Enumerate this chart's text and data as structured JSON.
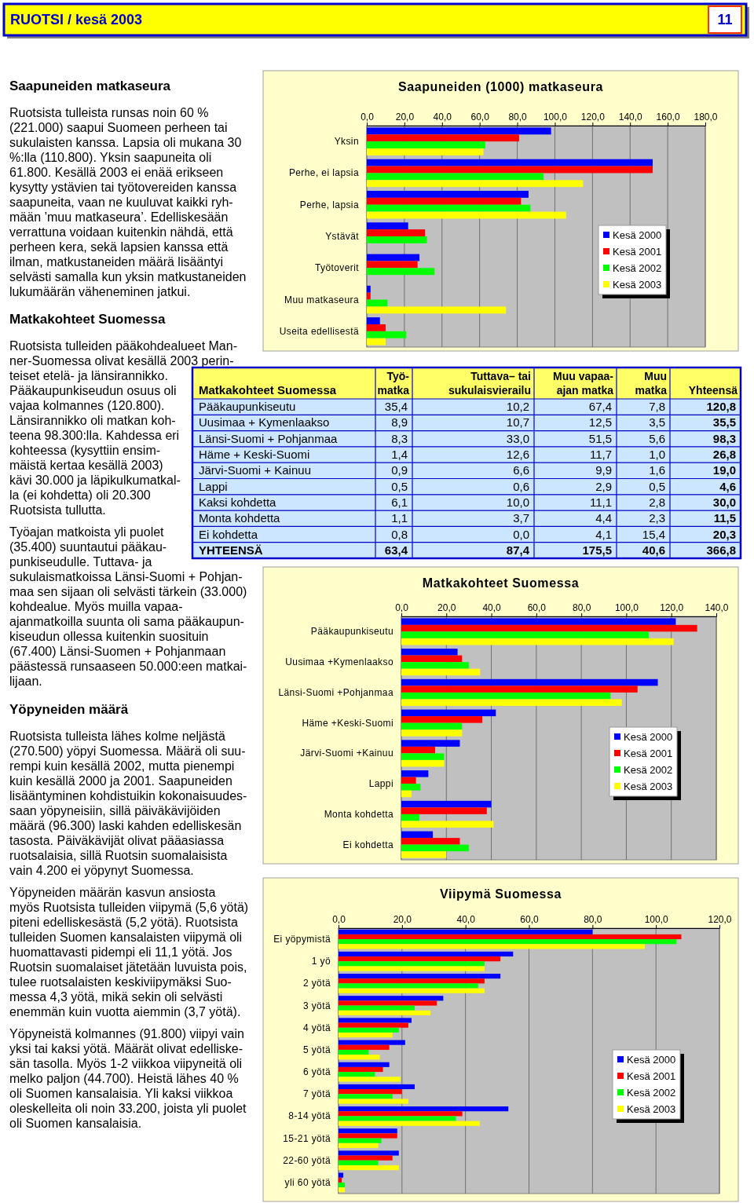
{
  "chart_data": [
    {
      "type": "other",
      "title": "RUOTSI / kesä 2003",
      "annotations": [
        "11"
      ]
    },
    {
      "type": "other",
      "title": "Saapuneiden matkaseura",
      "annotations": [
        "Ruotsista tulleista runsas noin 60 %\n(221.000) saapui Suomeen perheen tai\nsukulaisten kanssa. Lapsia oli mukana 30\n%:lla (110.800). Yksin saapuneita oli\n61.800. Kesällä 2003 ei enää erikseen\nkysytty ystävien tai työtovereiden kanssa\nsaapuneita, vaan ne kuuluvat kaikki ryh-\nmään ’muu matkaseura’. Edelliskesään\nverrattuna voidaan kuitenkin nähdä, että\nperheen kera, sekä lapsien kanssa että\nilman, matkustaneiden määrä lisääntyi\nselvästi samalla kun yksin matkustaneiden\nlukumäärän väheneminen jatkui."
      ]
    },
    {
      "type": "bar",
      "orientation": "horizontal",
      "title": "Saapuneiden (1000) matkaseura",
      "categories": [
        "Yksin",
        "Perhe, ei lapsia",
        "Perhe, lapsia",
        "Ystävät",
        "Työtoverit",
        "Muu matkaseura",
        "Useita edellisestä"
      ],
      "series": [
        {
          "name": "Kesä 2000",
          "color": "#0000ff",
          "values": [
            98,
            152,
            86,
            22,
            28,
            2,
            7
          ]
        },
        {
          "name": "Kesä 2001",
          "color": "#ff0000",
          "values": [
            81,
            152,
            82,
            31,
            27,
            2,
            10
          ]
        },
        {
          "name": "Kesä 2002",
          "color": "#00ff00",
          "values": [
            63,
            94,
            87,
            32,
            36,
            11,
            21
          ]
        },
        {
          "name": "Kesä 2003",
          "color": "#ffff00",
          "values": [
            62,
            115,
            106,
            null,
            null,
            74,
            10
          ]
        }
      ],
      "xlim": [
        0,
        180
      ],
      "xticks": [
        {
          "value": 0,
          "label": "0,0"
        },
        {
          "value": 20,
          "label": "20,0"
        },
        {
          "value": 40,
          "label": "40,0"
        },
        {
          "value": 60,
          "label": "60,0"
        },
        {
          "value": 80,
          "label": "80,0"
        },
        {
          "value": 100,
          "label": "100,0"
        },
        {
          "value": 120,
          "label": "120,0"
        },
        {
          "value": 140,
          "label": "140,0"
        },
        {
          "value": 160,
          "label": "160,0"
        },
        {
          "value": 180,
          "label": "180,0"
        }
      ],
      "grid": "x",
      "legend": "right"
    },
    {
      "type": "other",
      "title": "Matkakohteet Suomessa",
      "annotations": [
        "Ruotsista tulleiden pääkohdealueet Man-\nner-Suomessa olivat kesällä 2003 perin-\nteiset etelä- ja länsirannikko.\nPääkaupunkiseudun osuus oli\nvajaa kolmannes (120.800).\nLänsirannikko oli matkan koh-\nteena 98.300:lla. Kahdessa eri\nkohteessa (kysyttiin ensim-\nmäistä kertaa kesällä 2003)\nkävi 30.000 ja läpikulkumatkal-\nla (ei kohdetta) oli 20.300\nRuotsista tullutta.",
        "Työajan matkoista yli puolet\n(35.400) suuntautui pääkau-\npunkiseudulle. Tuttava- ja\nsukulaismatkoissa Länsi-Suomi + Pohjan-\nmaa sen sijaan oli selvästi tärkein (33.000)\nkohdealue. Myös muilla vapaa-\najanmatkoilla suunta oli sama pääkaupun-\nkiseudun ollessa kuitenkin suosituin\n(67.400) Länsi-Suomen + Pohjanmaan\npäästessä runsaaseen 50.000:een matkai-\nlijaan."
      ]
    },
    {
      "type": "other",
      "title": "Matkakohteet Suomessa",
      "categories": [
        "Työ-\nmatka",
        "Tuttava– tai\nsukulaisvierailu",
        "Muu vapaa-\najan matka",
        "Muu\nmatka",
        "Yhteensä"
      ],
      "y_categories": [
        "Pääkaupunkiseutu",
        "Uusimaa + Kymenlaakso",
        "Länsi-Suomi + Pohjanmaa",
        "Häme + Keski-Suomi",
        "Järvi-Suomi + Kainuu",
        "Lappi",
        "Kaksi kohdetta",
        "Monta kohdetta",
        "Ei kohdetta",
        "YHTEENSÄ"
      ],
      "cell_labels": [
        [
          "35,4",
          "10,2",
          "67,4",
          "7,8",
          "120,8"
        ],
        [
          "8,9",
          "10,7",
          "12,5",
          "3,5",
          "35,5"
        ],
        [
          "8,3",
          "33,0",
          "51,5",
          "5,6",
          "98,3"
        ],
        [
          "1,4",
          "12,6",
          "11,7",
          "1,0",
          "26,8"
        ],
        [
          "0,9",
          "6,6",
          "9,9",
          "1,6",
          "19,0"
        ],
        [
          "0,5",
          "0,6",
          "2,9",
          "0,5",
          "4,6"
        ],
        [
          "6,1",
          "10,0",
          "11,1",
          "2,8",
          "30,0"
        ],
        [
          "1,1",
          "3,7",
          "4,4",
          "2,3",
          "11,5"
        ],
        [
          "0,8",
          "0,0",
          "4,1",
          "15,4",
          "20,3"
        ],
        [
          "63,4",
          "87,4",
          "175,5",
          "40,6",
          "366,8"
        ]
      ]
    },
    {
      "type": "bar",
      "orientation": "horizontal",
      "title": "Matkakohteet Suomessa",
      "categories": [
        "Pääkaupunkiseutu",
        "Uusimaa +Kymenlaakso",
        "Länsi-Suomi +Pohjanmaa",
        "Häme +Keski-Suomi",
        "Järvi-Suomi +Kainuu",
        "Lappi",
        "Monta kohdetta",
        "Ei kohdetta"
      ],
      "series": [
        {
          "name": "Kesä 2000",
          "color": "#0000ff",
          "values": [
            122,
            25,
            114,
            42,
            26,
            12,
            40,
            14
          ]
        },
        {
          "name": "Kesä 2001",
          "color": "#ff0000",
          "values": [
            131.5,
            27,
            105,
            36,
            15,
            6.5,
            38,
            26
          ]
        },
        {
          "name": "Kesä 2002",
          "color": "#00ff00",
          "values": [
            110,
            30,
            93,
            27,
            19,
            8.5,
            8,
            30
          ]
        },
        {
          "name": "Kesä 2003",
          "color": "#ffff00",
          "values": [
            121,
            35,
            98,
            27,
            19,
            4.5,
            41,
            20
          ]
        }
      ],
      "xlim": [
        0,
        140
      ],
      "xticks": [
        {
          "value": 0,
          "label": "0,0"
        },
        {
          "value": 20,
          "label": "20,0"
        },
        {
          "value": 40,
          "label": "40,0"
        },
        {
          "value": 60,
          "label": "60,0"
        },
        {
          "value": 80,
          "label": "80,0"
        },
        {
          "value": 100,
          "label": "100,0"
        },
        {
          "value": 120,
          "label": "120,0"
        },
        {
          "value": 140,
          "label": "140,0"
        }
      ],
      "grid": "x",
      "legend": "right"
    },
    {
      "type": "other",
      "title": "Yöpyneiden määrä",
      "annotations": [
        "Ruotsista tulleista lähes kolme neljästä\n(270.500) yöpyi Suomessa. Määrä oli suu-\nrempi kuin kesällä 2002, mutta pienempi\nkuin kesällä 2000 ja 2001. Saapuneiden\nlisääntyminen kohdistuikin kokonaisuudes-\nsaan yöpyneisiin, sillä päiväkävijöiden\nmäärä (96.300) laski kahden edelliskesän\ntasosta. Päiväkävijät olivat pääasiassa\nruotsalaisia, sillä Ruotsin suomalaisista\nvain 4.200 ei yöpynyt Suomessa.",
        "Yöpyneiden määrän kasvun ansiosta\nmyös Ruotsista tulleiden viipymä (5,6 yötä)\npiteni edelliskesästä (5,2 yötä). Ruotsista\ntulleiden Suomen kansalaisten viipymä oli\nhuomattavasti pidempi eli 11,1 yötä. Jos\nRuotsin suomalaiset jätetään luvuista pois,\ntulee ruotsalaisten keskiviipymäksi Suo-\nmessa 4,3 yötä, mikä sekin oli selvästi\nenemmän kuin vuotta aiemmin (3,7 yötä).",
        "Yöpyneistä kolmannes (91.800) viipyi vain\nyksi tai kaksi yötä. Määrät olivat edelliske-\nsän tasolla. Myös 1-2 viikkoa viipyneitä oli\nmelko paljon (44.700). Heistä lähes 40 %\noli Suomen kansalaisia. Yli kaksi viikkoa\noleskelleita oli noin 33.200, joista yli puolet\noli Suomen kansalaisia."
      ]
    },
    {
      "type": "bar",
      "orientation": "horizontal",
      "title": "Viipymä Suomessa",
      "categories": [
        "Ei yöpymistä",
        "1 yö",
        "2 yötä",
        "3 yötä",
        "4 yötä",
        "5 yötä",
        "6 yötä",
        "7 yötä",
        "8-14 yötä",
        "15-21 yötä",
        "22-60 yötä",
        "yli 60 yötä"
      ],
      "series": [
        {
          "name": "Kesä 2000",
          "color": "#0000ff",
          "values": [
            80,
            55,
            51,
            33,
            23,
            21,
            16,
            24,
            53.5,
            18.5,
            19,
            1.5
          ]
        },
        {
          "name": "Kesä 2001",
          "color": "#ff0000",
          "values": [
            108,
            51,
            46,
            31,
            22,
            16,
            14,
            20,
            39,
            18.5,
            17,
            1
          ]
        },
        {
          "name": "Kesä 2002",
          "color": "#00ff00",
          "values": [
            106.5,
            46,
            44,
            24,
            19,
            9.5,
            11.5,
            17,
            37,
            13.5,
            12.5,
            2
          ]
        },
        {
          "name": "Kesä 2003",
          "color": "#ffff00",
          "values": [
            96.5,
            46,
            46,
            29,
            17,
            13,
            19.5,
            22,
            44.5,
            12.5,
            19,
            2
          ]
        }
      ],
      "xlim": [
        0,
        120
      ],
      "xticks": [
        {
          "value": 0,
          "label": "0,0"
        },
        {
          "value": 20,
          "label": "20,0"
        },
        {
          "value": 40,
          "label": "40,0"
        },
        {
          "value": 60,
          "label": "60,0"
        },
        {
          "value": 80,
          "label": "80,0"
        },
        {
          "value": 100,
          "label": "100,0"
        },
        {
          "value": 120,
          "label": "120,0"
        }
      ],
      "grid": "x",
      "legend": "right"
    }
  ]
}
